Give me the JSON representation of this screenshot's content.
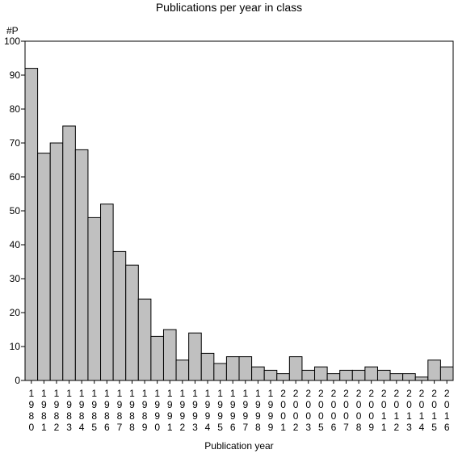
{
  "chart_data": {
    "type": "bar",
    "title": "Publications per year in class",
    "ylabel": "#P",
    "xlabel": "Publication year",
    "ylim": [
      0,
      100
    ],
    "yticks": [
      0,
      10,
      20,
      30,
      40,
      50,
      60,
      70,
      80,
      90,
      100
    ],
    "categories": [
      "1980",
      "1981",
      "1982",
      "1983",
      "1984",
      "1985",
      "1986",
      "1987",
      "1988",
      "1989",
      "1990",
      "1991",
      "1992",
      "1993",
      "1994",
      "1995",
      "1996",
      "1997",
      "1998",
      "1999",
      "2001",
      "2002",
      "2003",
      "2005",
      "2006",
      "2007",
      "2008",
      "2009",
      "2011",
      "2012",
      "2013",
      "2014",
      "2015",
      "2016"
    ],
    "values": [
      92,
      67,
      70,
      75,
      68,
      48,
      52,
      38,
      34,
      24,
      13,
      15,
      6,
      14,
      8,
      5,
      7,
      7,
      4,
      3,
      2,
      7,
      3,
      4,
      2,
      3,
      3,
      4,
      3,
      2,
      2,
      1,
      6,
      4
    ],
    "bar_color": "#c0c0c0",
    "grid": false
  }
}
